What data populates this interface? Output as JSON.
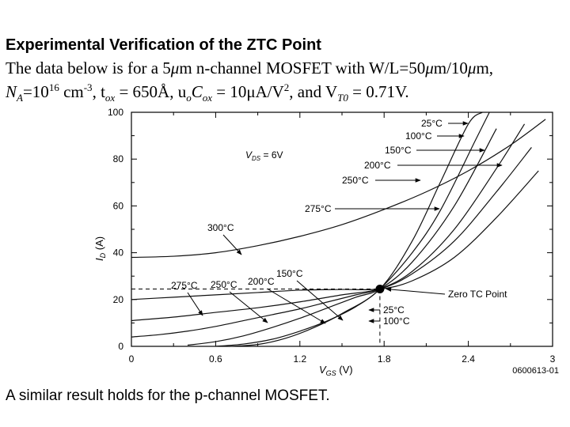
{
  "slide": {
    "title": "Experimental Verification of the ZTC Point",
    "line1": {
      "pre": "The data below is for a 5",
      "mu1": "μ",
      "mid": "m n-channel MOSFET with W/L=50",
      "mu2": "μ",
      "mid2": "m/10",
      "mu3": "μ",
      "end": "m,"
    },
    "line2": {
      "na": "N",
      "na_sub": "A",
      "na_eq": "=10",
      "na_exp": "16",
      "na_unit": " cm",
      "na_unit_exp": "-3",
      "tox": ", t",
      "tox_sub": "ox",
      "tox_val": " = 650Å, u",
      "uo_sub": "o",
      "cox": "C",
      "cox_sub": "ox",
      "cox_val": " = 10μA/V",
      "cox_exp": "2",
      "vt": ", and V",
      "vt_sub": "T0",
      "vt_val": " = 0.71V."
    },
    "footer": "A similar result holds for the p-channel MOSFET."
  },
  "chart_data": {
    "type": "line",
    "xlabel": "V_GS (V)",
    "ylabel": "I_D (A)",
    "xlim": [
      0,
      3
    ],
    "ylim": [
      0,
      100
    ],
    "xticks": [
      "0",
      "0.6",
      "1.2",
      "1.8",
      "2.4",
      "3"
    ],
    "yticks": [
      "0",
      "20",
      "40",
      "60",
      "80",
      "100"
    ],
    "figure_id": "0600613-01",
    "vds_label": "V_DS = 6V",
    "ztc": {
      "x": 1.77,
      "y": 24.5,
      "label": "Zero TC Point"
    },
    "series": [
      {
        "name": "25°C",
        "x": [
          0.7,
          0.9,
          1.1,
          1.3,
          1.5,
          1.77,
          2.0,
          2.2,
          2.4,
          2.5
        ],
        "y": [
          0,
          0.8,
          3.5,
          8,
          14,
          24.5,
          45,
          70,
          95,
          100
        ]
      },
      {
        "name": "100°C",
        "x": [
          0.6,
          0.8,
          1.0,
          1.2,
          1.4,
          1.6,
          1.77,
          2.0,
          2.2,
          2.45,
          2.55
        ],
        "y": [
          0,
          1,
          3,
          6.5,
          11,
          17,
          24.5,
          40,
          58,
          88,
          100
        ]
      },
      {
        "name": "150°C",
        "x": [
          0.4,
          0.6,
          0.8,
          1.0,
          1.2,
          1.4,
          1.6,
          1.77,
          2.0,
          2.3,
          2.6
        ],
        "y": [
          0.5,
          2,
          4.5,
          8,
          12,
          16.5,
          21,
          24.5,
          36,
          60,
          93
        ]
      },
      {
        "name": "200°C",
        "x": [
          0,
          0.2,
          0.4,
          0.6,
          0.8,
          1.0,
          1.2,
          1.4,
          1.6,
          1.77,
          2.0,
          2.3,
          2.6,
          2.8
        ],
        "y": [
          4,
          5,
          6.5,
          8.5,
          11,
          13.5,
          16,
          19,
          22,
          24.5,
          32,
          50,
          76,
          95
        ]
      },
      {
        "name": "250°C",
        "x": [
          0,
          0.3,
          0.6,
          0.9,
          1.2,
          1.5,
          1.77,
          2.0,
          2.3,
          2.6,
          2.85
        ],
        "y": [
          11,
          12.5,
          14.5,
          16.5,
          19,
          22,
          24.5,
          31,
          45,
          66,
          85
        ]
      },
      {
        "name": "275°C",
        "x": [
          0,
          0.3,
          0.6,
          0.9,
          1.2,
          1.5,
          1.77,
          2.0,
          2.3,
          2.6,
          2.9
        ],
        "y": [
          20,
          21,
          22,
          23,
          24,
          24.3,
          24.5,
          28,
          38,
          55,
          75
        ]
      },
      {
        "name": "300°C",
        "x": [
          0,
          0.3,
          0.6,
          0.9,
          1.2,
          1.5,
          1.8,
          2.1,
          2.4,
          2.7,
          2.95
        ],
        "y": [
          38,
          38.5,
          40,
          43,
          47,
          52,
          58.5,
          66,
          75,
          86,
          97
        ]
      }
    ],
    "callouts": [
      {
        "label": "25°C",
        "side": "right-top",
        "series": 0
      },
      {
        "label": "100°C",
        "side": "right-top",
        "series": 1
      },
      {
        "label": "150°C",
        "side": "right-top",
        "series": 2
      },
      {
        "label": "200°C",
        "side": "right-top",
        "series": 3
      },
      {
        "label": "250°C",
        "side": "right-top",
        "series": 4
      },
      {
        "label": "275°C",
        "side": "right-top",
        "series": 5
      },
      {
        "label": "300°C",
        "side": "left-mid",
        "series": 6
      },
      {
        "label": "275°C",
        "side": "left-low",
        "series": 5
      },
      {
        "label": "250°C",
        "side": "left-low",
        "series": 4
      },
      {
        "label": "200°C",
        "side": "left-low",
        "series": 3
      },
      {
        "label": "150°C",
        "side": "left-low",
        "series": 2
      },
      {
        "label": "25°C",
        "side": "ztc-low",
        "series": 0
      },
      {
        "label": "100°C",
        "side": "ztc-low",
        "series": 1
      }
    ]
  }
}
